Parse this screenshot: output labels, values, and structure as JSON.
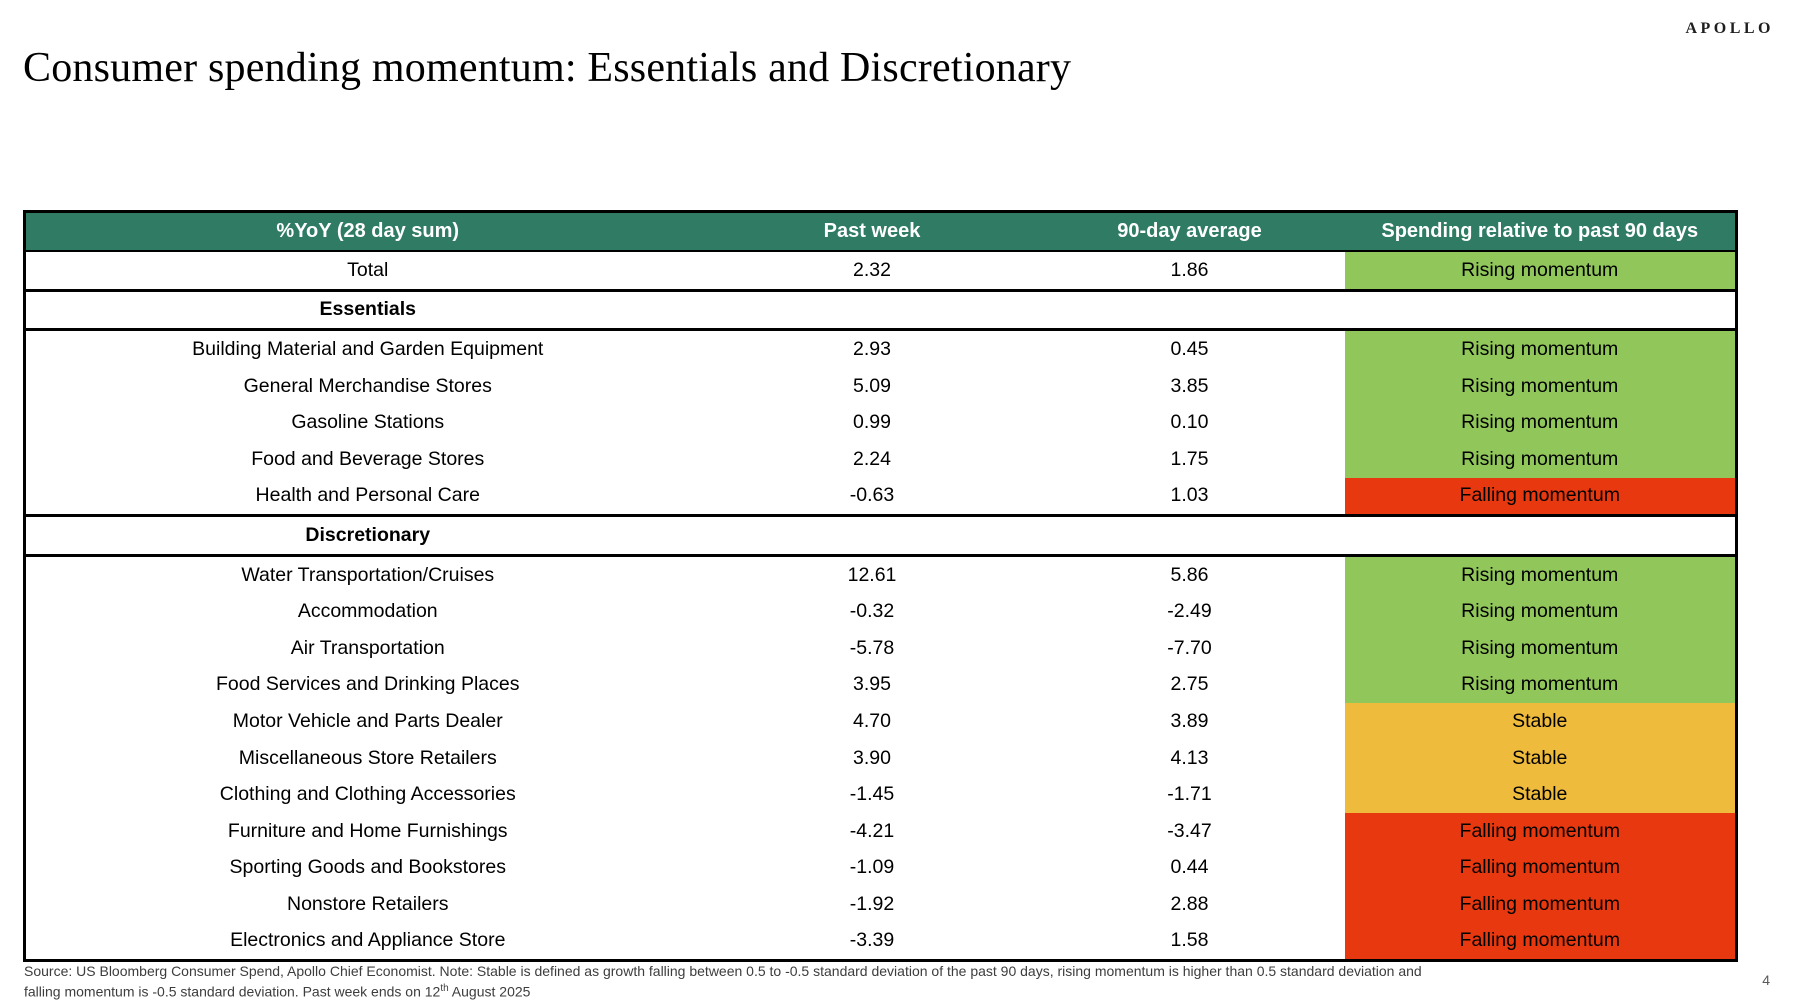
{
  "brand": {
    "logo_text": "APOLLO"
  },
  "header": {
    "title": "Consumer spending momentum: Essentials and Discretionary"
  },
  "colors": {
    "header_bg": "#2F7B64",
    "rising": "#90C65A",
    "stable": "#EFBB3D",
    "falling": "#E8380F",
    "none": "#FFFFFF"
  },
  "table": {
    "headers": [
      "%YoY (28 day sum)",
      "Past week",
      "90-day average",
      "Spending relative to past 90 days"
    ],
    "rows": [
      {
        "type": "data",
        "label": "Total",
        "past_week": "2.32",
        "avg_90": "1.86",
        "status": "Rising momentum",
        "status_key": "rising"
      },
      {
        "type": "section",
        "label": "Essentials"
      },
      {
        "type": "data",
        "label": "Building Material and Garden Equipment",
        "past_week": "2.93",
        "avg_90": "0.45",
        "status": "Rising momentum",
        "status_key": "rising"
      },
      {
        "type": "data",
        "label": "General Merchandise Stores",
        "past_week": "5.09",
        "avg_90": "3.85",
        "status": "Rising momentum",
        "status_key": "rising"
      },
      {
        "type": "data",
        "label": "Gasoline Stations",
        "past_week": "0.99",
        "avg_90": "0.10",
        "status": "Rising momentum",
        "status_key": "rising"
      },
      {
        "type": "data",
        "label": "Food and Beverage Stores",
        "past_week": "2.24",
        "avg_90": "1.75",
        "status": "Rising momentum",
        "status_key": "rising"
      },
      {
        "type": "data",
        "label": "Health and Personal Care",
        "past_week": "-0.63",
        "avg_90": "1.03",
        "status": "Falling momentum",
        "status_key": "falling"
      },
      {
        "type": "section",
        "label": "Discretionary"
      },
      {
        "type": "data",
        "label": "Water Transportation/Cruises",
        "past_week": "12.61",
        "avg_90": "5.86",
        "status": "Rising momentum",
        "status_key": "rising"
      },
      {
        "type": "data",
        "label": "Accommodation",
        "past_week": "-0.32",
        "avg_90": "-2.49",
        "status": "Rising momentum",
        "status_key": "rising"
      },
      {
        "type": "data",
        "label": "Air Transportation",
        "past_week": "-5.78",
        "avg_90": "-7.70",
        "status": "Rising momentum",
        "status_key": "rising"
      },
      {
        "type": "data",
        "label": "Food Services and Drinking Places",
        "past_week": "3.95",
        "avg_90": "2.75",
        "status": "Rising momentum",
        "status_key": "rising"
      },
      {
        "type": "data",
        "label": "Motor Vehicle and Parts Dealer",
        "past_week": "4.70",
        "avg_90": "3.89",
        "status": "Stable",
        "status_key": "stable"
      },
      {
        "type": "data",
        "label": "Miscellaneous Store Retailers",
        "past_week": "3.90",
        "avg_90": "4.13",
        "status": "Stable",
        "status_key": "stable"
      },
      {
        "type": "data",
        "label": "Clothing and Clothing Accessories",
        "past_week": "-1.45",
        "avg_90": "-1.71",
        "status": "Stable",
        "status_key": "stable"
      },
      {
        "type": "data",
        "label": "Furniture and Home Furnishings",
        "past_week": "-4.21",
        "avg_90": "-3.47",
        "status": "Falling momentum",
        "status_key": "falling"
      },
      {
        "type": "data",
        "label": "Sporting Goods and Bookstores",
        "past_week": "-1.09",
        "avg_90": "0.44",
        "status": "Falling momentum",
        "status_key": "falling"
      },
      {
        "type": "data",
        "label": "Nonstore Retailers",
        "past_week": "-1.92",
        "avg_90": "2.88",
        "status": "Falling momentum",
        "status_key": "falling"
      },
      {
        "type": "data",
        "label": "Electronics and Appliance Store",
        "past_week": "-3.39",
        "avg_90": "1.58",
        "status": "Falling momentum",
        "status_key": "falling"
      }
    ]
  },
  "chart_data": {
    "type": "table",
    "title": "Consumer spending momentum: Essentials and Discretionary",
    "columns": [
      "%YoY (28 day sum)",
      "Past week",
      "90-day average",
      "Spending relative to past 90 days"
    ],
    "rows": [
      [
        "Total",
        2.32,
        1.86,
        "Rising momentum"
      ],
      [
        "Essentials",
        null,
        null,
        null
      ],
      [
        "Building Material and Garden Equipment",
        2.93,
        0.45,
        "Rising momentum"
      ],
      [
        "General Merchandise Stores",
        5.09,
        3.85,
        "Rising momentum"
      ],
      [
        "Gasoline Stations",
        0.99,
        0.1,
        "Rising momentum"
      ],
      [
        "Food and Beverage Stores",
        2.24,
        1.75,
        "Rising momentum"
      ],
      [
        "Health and Personal Care",
        -0.63,
        1.03,
        "Falling momentum"
      ],
      [
        "Discretionary",
        null,
        null,
        null
      ],
      [
        "Water Transportation/Cruises",
        12.61,
        5.86,
        "Rising momentum"
      ],
      [
        "Accommodation",
        -0.32,
        -2.49,
        "Rising momentum"
      ],
      [
        "Air Transportation",
        -5.78,
        -7.7,
        "Rising momentum"
      ],
      [
        "Food Services and Drinking Places",
        3.95,
        2.75,
        "Rising momentum"
      ],
      [
        "Motor Vehicle and Parts Dealer",
        4.7,
        3.89,
        "Stable"
      ],
      [
        "Miscellaneous Store Retailers",
        3.9,
        4.13,
        "Stable"
      ],
      [
        "Clothing and Clothing Accessories",
        -1.45,
        -1.71,
        "Stable"
      ],
      [
        "Furniture and Home Furnishings",
        -4.21,
        -3.47,
        "Falling momentum"
      ],
      [
        "Sporting Goods and Bookstores",
        -1.09,
        0.44,
        "Falling momentum"
      ],
      [
        "Nonstore Retailers",
        -1.92,
        2.88,
        "Falling momentum"
      ],
      [
        "Electronics and Appliance Store",
        -3.39,
        1.58,
        "Falling momentum"
      ]
    ]
  },
  "footer": {
    "source_prefix": "Source: US Bloomberg Consumer Spend, Apollo Chief Economist. Note: Stable is defined as growth falling between 0.5 to -0.5 standard deviation of the past 90 days, rising momentum is higher than 0.5 standard deviation and falling momentum is -0.5 standard deviation. Past week ends on 12",
    "ordinal_suffix": "th",
    "source_suffix": " August 2025"
  },
  "page": {
    "number": "4"
  }
}
